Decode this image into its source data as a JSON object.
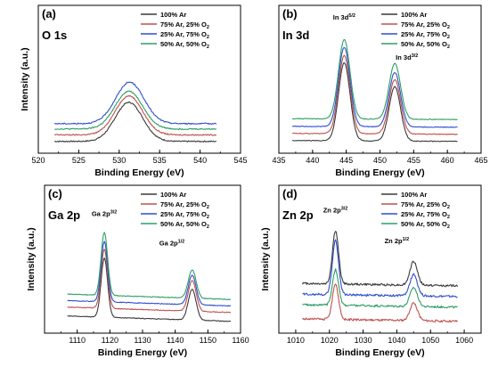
{
  "chart_data": [
    {
      "type": "line",
      "panel_letter": "(a)",
      "title": "O 1s",
      "xlabel": "Binding Energy (eV)",
      "ylabel": "Intensity (a.u.)",
      "xlim": [
        520,
        545
      ],
      "x_ticks": [
        520,
        525,
        530,
        535,
        540,
        545
      ],
      "x_tick_labels": [
        "520",
        "525",
        "530",
        "535",
        "540",
        "545"
      ],
      "x_range": [
        522,
        542
      ],
      "series": [
        {
          "name": "100% Ar",
          "color": "#3a3a3a",
          "baseline": 0.0,
          "tilt": 0.0,
          "noise": 0.05,
          "peaks": [
            {
              "center": 531.2,
              "height": 3.3,
              "width": 1.7
            }
          ]
        },
        {
          "name": "75% Ar, 25% O2",
          "color": "#c0504d",
          "baseline": 0.55,
          "tilt": 0.0,
          "noise": 0.05,
          "peaks": [
            {
              "center": 531.2,
              "height": 3.3,
              "width": 1.7
            }
          ]
        },
        {
          "name": "25% Ar, 75% O2",
          "color": "#2f4fd0",
          "baseline": 1.5,
          "tilt": 0.0,
          "noise": 0.05,
          "peaks": [
            {
              "center": 531.3,
              "height": 3.5,
              "width": 1.75
            }
          ]
        },
        {
          "name": "50% Ar, 50% O2",
          "color": "#2e9e66",
          "baseline": 1.05,
          "tilt": 0.0,
          "noise": 0.05,
          "peaks": [
            {
              "center": 531.2,
              "height": 3.2,
              "width": 1.7
            }
          ]
        }
      ],
      "annotations": []
    },
    {
      "type": "line",
      "panel_letter": "(b)",
      "title": "In 3d",
      "xlabel": "Binding Energy (eV)",
      "ylabel": "",
      "xlim": [
        435,
        465
      ],
      "x_ticks": [
        435,
        440,
        445,
        450,
        455,
        460,
        465
      ],
      "x_tick_labels": [
        "435",
        "440",
        "445",
        "450",
        "455",
        "460",
        "465"
      ],
      "x_range": [
        437,
        461.5
      ],
      "series": [
        {
          "name": "100% Ar",
          "color": "#3a3a3a",
          "baseline": 0.0,
          "tilt": 0.02,
          "noise": 0.03,
          "peaks": [
            {
              "center": 444.7,
              "height": 6.6,
              "width": 0.85
            },
            {
              "center": 452.2,
              "height": 4.6,
              "width": 0.85
            }
          ]
        },
        {
          "name": "75% Ar, 25% O2",
          "color": "#c0504d",
          "baseline": 0.6,
          "tilt": 0.02,
          "noise": 0.03,
          "peaks": [
            {
              "center": 444.7,
              "height": 6.6,
              "width": 0.85
            },
            {
              "center": 452.2,
              "height": 4.6,
              "width": 0.85
            }
          ]
        },
        {
          "name": "25% Ar, 75% O2",
          "color": "#2f4fd0",
          "baseline": 1.2,
          "tilt": 0.02,
          "noise": 0.03,
          "peaks": [
            {
              "center": 444.7,
              "height": 6.7,
              "width": 0.85
            },
            {
              "center": 452.2,
              "height": 4.6,
              "width": 0.85
            }
          ]
        },
        {
          "name": "50% Ar, 50% O2",
          "color": "#2e9e66",
          "baseline": 1.85,
          "tilt": 0.02,
          "noise": 0.03,
          "peaks": [
            {
              "center": 444.7,
              "height": 6.7,
              "width": 0.85
            },
            {
              "center": 452.2,
              "height": 4.7,
              "width": 0.85
            }
          ]
        }
      ],
      "annotations": [
        {
          "base": "In 3d",
          "sup": "5/2",
          "x": 444.7,
          "y": 10.3
        },
        {
          "base": "In 3d",
          "sup": "3/2",
          "x": 454.0,
          "y": 6.9
        }
      ]
    },
    {
      "type": "line",
      "panel_letter": "(c)",
      "title": "Ga 2p",
      "xlabel": "Binding Energy (eV)",
      "ylabel": "Intensity (a.u.)",
      "xlim": [
        1100,
        1160
      ],
      "x_ticks": [
        1110,
        1120,
        1130,
        1140,
        1150,
        1160
      ],
      "x_tick_labels": [
        "1110",
        "1120",
        "1130",
        "1140",
        "1150",
        "1160"
      ],
      "x_range": [
        1107,
        1157
      ],
      "series": [
        {
          "name": "100% Ar",
          "color": "#3a3a3a",
          "baseline": 0.0,
          "tilt": 0.06,
          "noise": 0.03,
          "peaks": [
            {
              "center": 1118.3,
              "height": 5.0,
              "width": 1.0
            },
            {
              "center": 1145.2,
              "height": 2.6,
              "width": 1.2
            }
          ]
        },
        {
          "name": "75% Ar, 25% O2",
          "color": "#c0504d",
          "baseline": 0.75,
          "tilt": 0.06,
          "noise": 0.03,
          "peaks": [
            {
              "center": 1118.3,
              "height": 5.0,
              "width": 1.0
            },
            {
              "center": 1145.2,
              "height": 2.6,
              "width": 1.2
            }
          ]
        },
        {
          "name": "25% Ar, 75% O2",
          "color": "#2f4fd0",
          "baseline": 1.3,
          "tilt": 0.06,
          "noise": 0.03,
          "peaks": [
            {
              "center": 1118.3,
              "height": 5.1,
              "width": 1.0
            },
            {
              "center": 1145.2,
              "height": 2.5,
              "width": 1.2
            }
          ]
        },
        {
          "name": "50% Ar, 50% O2",
          "color": "#2e9e66",
          "baseline": 1.85,
          "tilt": 0.06,
          "noise": 0.03,
          "peaks": [
            {
              "center": 1118.3,
              "height": 5.3,
              "width": 1.0
            },
            {
              "center": 1145.2,
              "height": 2.4,
              "width": 1.2
            }
          ]
        }
      ],
      "annotations": [
        {
          "base": "Ga 2p",
          "sup": "3/2",
          "x": 1118.3,
          "y": 8.9
        },
        {
          "base": "Ga 2p",
          "sup": "1/2",
          "x": 1139.0,
          "y": 6.4
        }
      ]
    },
    {
      "type": "line",
      "panel_letter": "(d)",
      "title": "Zn 2p",
      "xlabel": "Binding Energy (eV)",
      "ylabel": "Intensity (a.u.)",
      "xlim": [
        1005,
        1065
      ],
      "x_ticks": [
        1010,
        1020,
        1030,
        1040,
        1050,
        1060
      ],
      "x_tick_labels": [
        "1010",
        "1020",
        "1030",
        "1040",
        "1050",
        "1060"
      ],
      "x_range": [
        1012,
        1058
      ],
      "series": [
        {
          "name": "100% Ar",
          "color": "#3a3a3a",
          "baseline": 3.0,
          "tilt": 0.03,
          "noise": 0.09,
          "peaks": [
            {
              "center": 1021.8,
              "height": 4.5,
              "width": 0.9
            },
            {
              "center": 1045.0,
              "height": 2.0,
              "width": 1.1
            }
          ]
        },
        {
          "name": "75% Ar, 25% O2",
          "color": "#c0504d",
          "baseline": 0.0,
          "tilt": 0.03,
          "noise": 0.09,
          "peaks": [
            {
              "center": 1021.8,
              "height": 3.0,
              "width": 0.9
            },
            {
              "center": 1045.0,
              "height": 1.5,
              "width": 1.1
            }
          ]
        },
        {
          "name": "25% Ar, 75% O2",
          "color": "#2f4fd0",
          "baseline": 2.1,
          "tilt": 0.03,
          "noise": 0.09,
          "peaks": [
            {
              "center": 1021.8,
              "height": 4.6,
              "width": 0.9
            },
            {
              "center": 1045.0,
              "height": 1.8,
              "width": 1.1
            }
          ]
        },
        {
          "name": "50% Ar, 50% O2",
          "color": "#2e9e66",
          "baseline": 1.2,
          "tilt": 0.03,
          "noise": 0.09,
          "peaks": [
            {
              "center": 1021.8,
              "height": 3.0,
              "width": 0.9
            },
            {
              "center": 1045.0,
              "height": 1.6,
              "width": 1.1
            }
          ]
        }
      ],
      "annotations": [
        {
          "base": "Zn 2p",
          "sup": "3/2",
          "x": 1021.8,
          "y": 9.2
        },
        {
          "base": "Zn 2p",
          "sup": "1/2",
          "x": 1040.0,
          "y": 6.6
        }
      ]
    }
  ]
}
